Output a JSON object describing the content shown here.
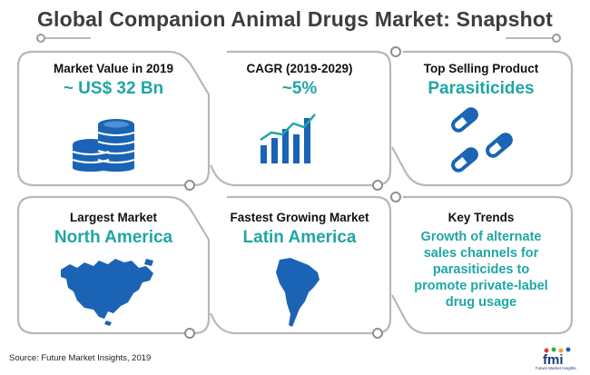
{
  "header": {
    "title": "Global Companion Animal Drugs Market: Snapshot"
  },
  "cards": {
    "market_value": {
      "label": "Market Value in 2019",
      "value": "~ US$ 32 Bn",
      "icon": "coins-stack-icon"
    },
    "cagr": {
      "label": "CAGR (2019-2029)",
      "value": "~5%",
      "icon": "bar-growth-chart-icon"
    },
    "top_product": {
      "label": "Top Selling Product",
      "value": "Parasiticides",
      "icon": "capsules-icon"
    },
    "largest_market": {
      "label": "Largest Market",
      "value": "North America",
      "icon": "north-america-map-icon"
    },
    "fastest_market": {
      "label": "Fastest Growing Market",
      "value": "Latin America",
      "icon": "south-america-map-icon"
    },
    "key_trends": {
      "label": "Key Trends",
      "lines": [
        "Growth of alternate",
        "sales channels for",
        "parasiticides to",
        "promote private-label",
        "drug usage"
      ]
    }
  },
  "footer": {
    "source": "Source: Future Market Insights, 2019",
    "logo_text": "fmi",
    "logo_tagline": "Future Market Insights"
  },
  "colors": {
    "accent": "#1fa6a5",
    "icon_blue": "#1a63b5",
    "outline": "#b8b8b8",
    "title": "#3d3d3d"
  }
}
